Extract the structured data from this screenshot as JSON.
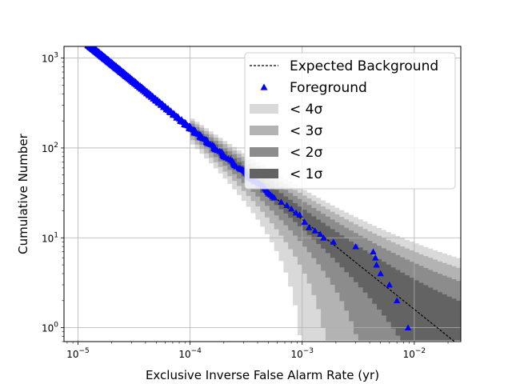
{
  "chart_data": {
    "type": "scatter",
    "title": "",
    "xlabel": "Exclusive Inverse False Alarm Rate (yr)",
    "ylabel": "Cumulative Number",
    "xscale": "log",
    "yscale": "log",
    "xlim": [
      7.5e-06,
      0.026
    ],
    "ylim": [
      0.7,
      1350
    ],
    "grid": true,
    "legend_position": "top-right",
    "x_major_ticks": [
      1e-05,
      0.0001,
      0.001,
      0.01
    ],
    "x_tick_labels": [
      {
        "base": "10",
        "exp": "−5"
      },
      {
        "base": "10",
        "exp": "−4"
      },
      {
        "base": "10",
        "exp": "−3"
      },
      {
        "base": "10",
        "exp": "−2"
      }
    ],
    "y_major_ticks": [
      1,
      10,
      100,
      1000
    ],
    "y_tick_labels": [
      {
        "base": "10",
        "exp": "0"
      },
      {
        "base": "10",
        "exp": "1"
      },
      {
        "base": "10",
        "exp": "2"
      },
      {
        "base": "10",
        "exp": "3"
      }
    ],
    "legend": [
      {
        "label": "Expected Background",
        "kind": "dashed-line",
        "color": "#000000"
      },
      {
        "label": "Foreground",
        "kind": "triangle-marker",
        "color": "#0000ff"
      },
      {
        "label": "< 4σ",
        "kind": "band",
        "color": "#d9d9d9"
      },
      {
        "label": "< 3σ",
        "kind": "band",
        "color": "#b3b3b3"
      },
      {
        "label": "< 2σ",
        "kind": "band",
        "color": "#8c8c8c"
      },
      {
        "label": "< 1σ",
        "kind": "band",
        "color": "#636363"
      }
    ],
    "expected_background": {
      "x_start": 0.0001,
      "x_end": 0.026,
      "y_at_start": 160,
      "slope": -1
    },
    "bands": {
      "x_start": 0.0001,
      "x_end": 0.026,
      "colors": [
        "#d9d9d9",
        "#b3b3b3",
        "#8c8c8c",
        "#636363"
      ],
      "sigma_levels": [
        4,
        3,
        2,
        1
      ]
    },
    "foreground_series": {
      "name": "Foreground",
      "color": "#0000ff",
      "marker": "triangle",
      "dense_segment": {
        "x_start": 1.25e-05,
        "x_end": 0.00058,
        "y_start": 1400,
        "y_end": 28
      },
      "points": [
        {
          "x": 0.00065,
          "y": 25
        },
        {
          "x": 0.00073,
          "y": 23
        },
        {
          "x": 0.0008,
          "y": 21
        },
        {
          "x": 0.00088,
          "y": 19
        },
        {
          "x": 0.00095,
          "y": 18
        },
        {
          "x": 0.00105,
          "y": 15
        },
        {
          "x": 0.00115,
          "y": 13
        },
        {
          "x": 0.0013,
          "y": 12
        },
        {
          "x": 0.00145,
          "y": 11
        },
        {
          "x": 0.00155,
          "y": 10
        },
        {
          "x": 0.0019,
          "y": 9
        },
        {
          "x": 0.003,
          "y": 8
        },
        {
          "x": 0.0043,
          "y": 7
        },
        {
          "x": 0.0045,
          "y": 6
        },
        {
          "x": 0.0046,
          "y": 5
        },
        {
          "x": 0.005,
          "y": 4
        },
        {
          "x": 0.006,
          "y": 3
        },
        {
          "x": 0.007,
          "y": 2
        },
        {
          "x": 0.0088,
          "y": 1
        }
      ]
    }
  }
}
